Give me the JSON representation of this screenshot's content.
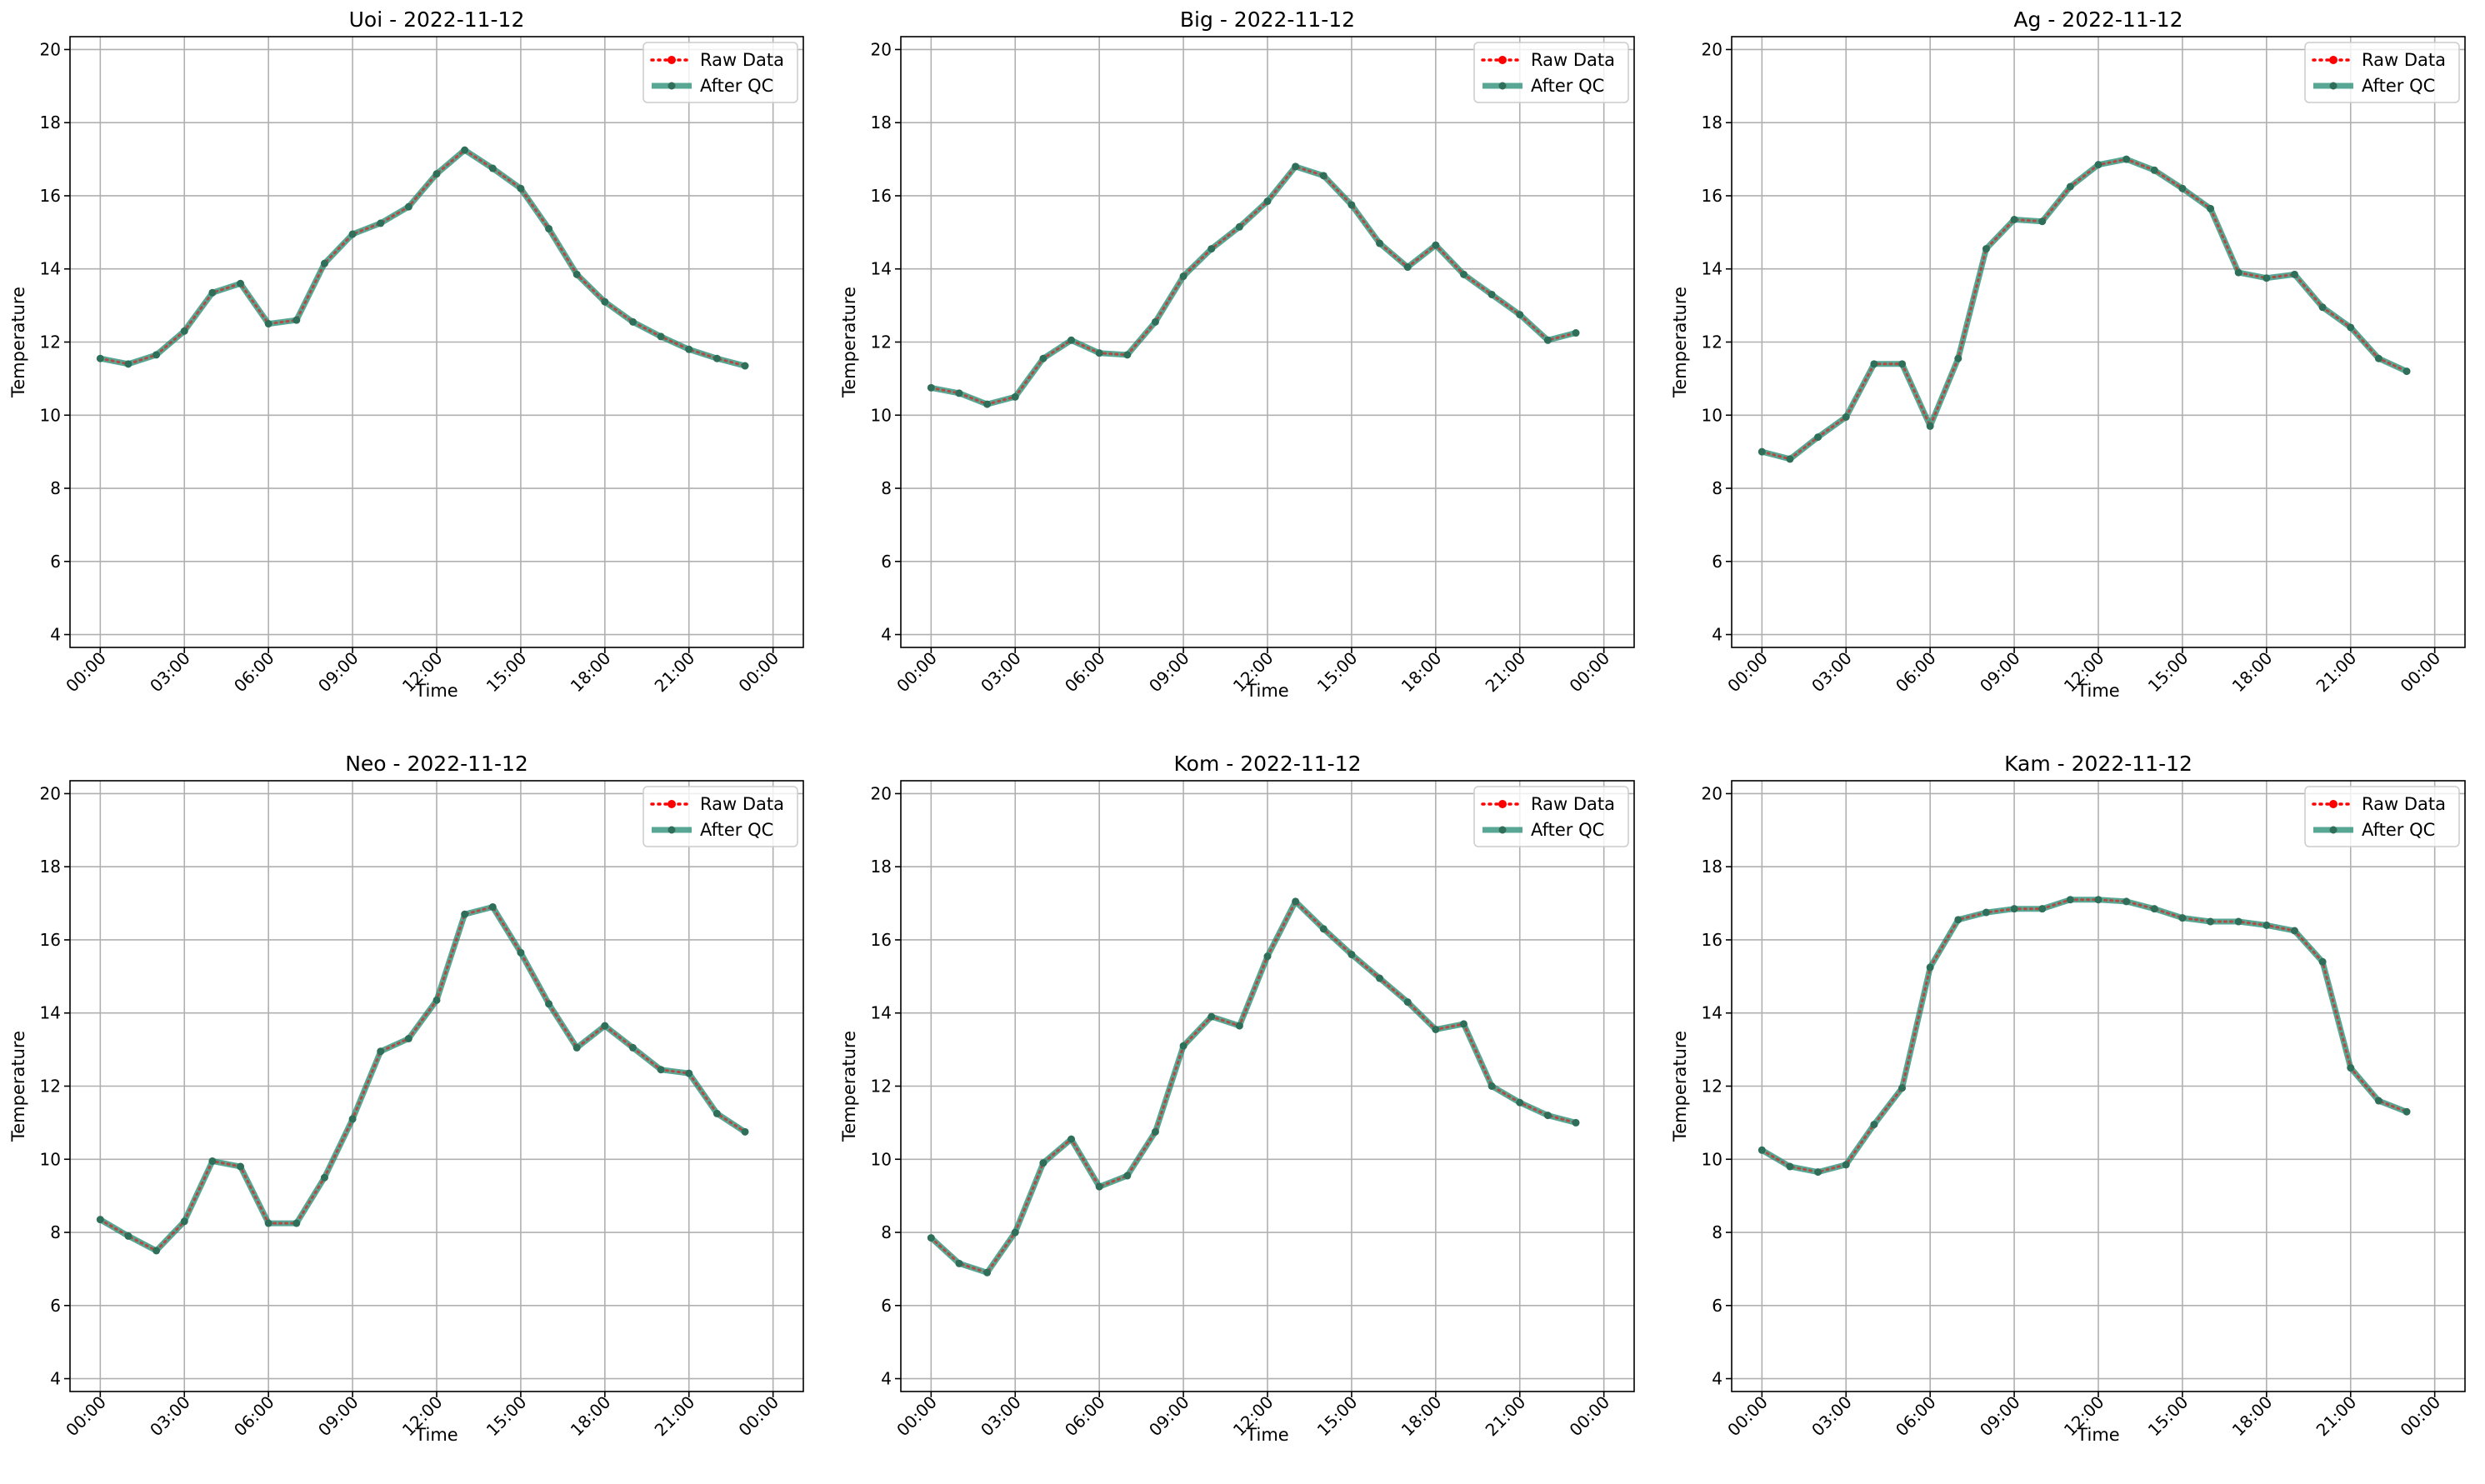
{
  "chart_data": [
    {
      "type": "line",
      "title": "Uoi - 2022-11-12",
      "xlabel": "Time",
      "ylabel": "Temperature",
      "ylim": [
        4,
        20
      ],
      "yticks": [
        "4",
        "6",
        "8",
        "10",
        "12",
        "14",
        "16",
        "18",
        "20"
      ],
      "xlim_hours": [
        0,
        24
      ],
      "xticks": [
        "00:00",
        "03:00",
        "06:00",
        "09:00",
        "12:00",
        "15:00",
        "18:00",
        "21:00",
        "00:00"
      ],
      "grid": true,
      "legend_placement": "top-right",
      "x_hours": [
        0,
        1,
        2,
        3,
        4,
        5,
        6,
        7,
        8,
        9,
        10,
        11,
        12,
        13,
        14,
        15,
        16,
        17,
        18,
        19,
        20,
        21,
        22,
        23
      ],
      "series": [
        {
          "name": "Raw Data",
          "color": "#ff0000",
          "values": [
            11.55,
            11.4,
            11.65,
            12.3,
            13.35,
            13.6,
            12.5,
            12.6,
            14.15,
            14.95,
            15.25,
            15.7,
            16.6,
            17.25,
            16.75,
            16.2,
            15.1,
            13.85,
            13.1,
            12.55,
            12.15,
            11.8,
            11.55,
            11.35
          ]
        },
        {
          "name": "After QC",
          "color": "#1f8a70",
          "values": [
            11.55,
            11.4,
            11.65,
            12.3,
            13.35,
            13.6,
            12.5,
            12.6,
            14.15,
            14.95,
            15.25,
            15.7,
            16.6,
            17.25,
            16.75,
            16.2,
            15.1,
            13.85,
            13.1,
            12.55,
            12.15,
            11.8,
            11.55,
            11.35
          ]
        }
      ]
    },
    {
      "type": "line",
      "title": "Big - 2022-11-12",
      "xlabel": "Time",
      "ylabel": "Temperature",
      "ylim": [
        4,
        20
      ],
      "yticks": [
        "4",
        "6",
        "8",
        "10",
        "12",
        "14",
        "16",
        "18",
        "20"
      ],
      "xlim_hours": [
        0,
        24
      ],
      "xticks": [
        "00:00",
        "03:00",
        "06:00",
        "09:00",
        "12:00",
        "15:00",
        "18:00",
        "21:00",
        "00:00"
      ],
      "grid": true,
      "legend_placement": "top-right",
      "x_hours": [
        0,
        1,
        2,
        3,
        4,
        5,
        6,
        7,
        8,
        9,
        10,
        11,
        12,
        13,
        14,
        15,
        16,
        17,
        18,
        19,
        20,
        21,
        22,
        23
      ],
      "series": [
        {
          "name": "Raw Data",
          "color": "#ff0000",
          "values": [
            10.75,
            10.6,
            10.3,
            10.5,
            11.55,
            12.05,
            11.7,
            11.65,
            12.55,
            13.8,
            14.55,
            15.15,
            15.85,
            16.8,
            16.55,
            15.75,
            14.7,
            14.05,
            14.65,
            13.85,
            13.3,
            12.75,
            12.05,
            12.25
          ]
        },
        {
          "name": "After QC",
          "color": "#1f8a70",
          "values": [
            10.75,
            10.6,
            10.3,
            10.5,
            11.55,
            12.05,
            11.7,
            11.65,
            12.55,
            13.8,
            14.55,
            15.15,
            15.85,
            16.8,
            16.55,
            15.75,
            14.7,
            14.05,
            14.65,
            13.85,
            13.3,
            12.75,
            12.05,
            12.25
          ]
        }
      ]
    },
    {
      "type": "line",
      "title": "Ag - 2022-11-12",
      "xlabel": "Time",
      "ylabel": "Temperature",
      "ylim": [
        4,
        20
      ],
      "yticks": [
        "4",
        "6",
        "8",
        "10",
        "12",
        "14",
        "16",
        "18",
        "20"
      ],
      "xlim_hours": [
        0,
        24
      ],
      "xticks": [
        "00:00",
        "03:00",
        "06:00",
        "09:00",
        "12:00",
        "15:00",
        "18:00",
        "21:00",
        "00:00"
      ],
      "grid": true,
      "legend_placement": "top-right",
      "x_hours": [
        0,
        1,
        2,
        3,
        4,
        5,
        6,
        7,
        8,
        9,
        10,
        11,
        12,
        13,
        14,
        15,
        16,
        17,
        18,
        19,
        20,
        21,
        22,
        23
      ],
      "series": [
        {
          "name": "Raw Data",
          "color": "#ff0000",
          "values": [
            9.0,
            8.8,
            9.4,
            9.95,
            11.4,
            11.4,
            9.7,
            11.55,
            14.55,
            15.35,
            15.3,
            16.25,
            16.85,
            17.0,
            16.7,
            16.2,
            15.65,
            13.9,
            13.75,
            13.85,
            12.95,
            12.4,
            11.55,
            11.2
          ]
        },
        {
          "name": "After QC",
          "color": "#1f8a70",
          "values": [
            9.0,
            8.8,
            9.4,
            9.95,
            11.4,
            11.4,
            9.7,
            11.55,
            14.55,
            15.35,
            15.3,
            16.25,
            16.85,
            17.0,
            16.7,
            16.2,
            15.65,
            13.9,
            13.75,
            13.85,
            12.95,
            12.4,
            11.55,
            11.2
          ]
        }
      ]
    },
    {
      "type": "line",
      "title": "Neo - 2022-11-12",
      "xlabel": "Time",
      "ylabel": "Temperature",
      "ylim": [
        4,
        20
      ],
      "yticks": [
        "4",
        "6",
        "8",
        "10",
        "12",
        "14",
        "16",
        "18",
        "20"
      ],
      "xlim_hours": [
        0,
        24
      ],
      "xticks": [
        "00:00",
        "03:00",
        "06:00",
        "09:00",
        "12:00",
        "15:00",
        "18:00",
        "21:00",
        "00:00"
      ],
      "grid": true,
      "legend_placement": "top-right",
      "x_hours": [
        0,
        1,
        2,
        3,
        4,
        5,
        6,
        7,
        8,
        9,
        10,
        11,
        12,
        13,
        14,
        15,
        16,
        17,
        18,
        19,
        20,
        21,
        22,
        23
      ],
      "series": [
        {
          "name": "Raw Data",
          "color": "#ff0000",
          "values": [
            8.35,
            7.9,
            7.5,
            8.3,
            9.95,
            9.8,
            8.25,
            8.25,
            9.5,
            11.1,
            12.95,
            13.3,
            14.35,
            16.7,
            16.9,
            15.65,
            14.25,
            13.05,
            13.65,
            13.05,
            12.45,
            12.35,
            11.25,
            10.75
          ]
        },
        {
          "name": "After QC",
          "color": "#1f8a70",
          "values": [
            8.35,
            7.9,
            7.5,
            8.3,
            9.95,
            9.8,
            8.25,
            8.25,
            9.5,
            11.1,
            12.95,
            13.3,
            14.35,
            16.7,
            16.9,
            15.65,
            14.25,
            13.05,
            13.65,
            13.05,
            12.45,
            12.35,
            11.25,
            10.75
          ]
        }
      ]
    },
    {
      "type": "line",
      "title": "Kom - 2022-11-12",
      "xlabel": "Time",
      "ylabel": "Temperature",
      "ylim": [
        4,
        20
      ],
      "yticks": [
        "4",
        "6",
        "8",
        "10",
        "12",
        "14",
        "16",
        "18",
        "20"
      ],
      "xlim_hours": [
        0,
        24
      ],
      "xticks": [
        "00:00",
        "03:00",
        "06:00",
        "09:00",
        "12:00",
        "15:00",
        "18:00",
        "21:00",
        "00:00"
      ],
      "grid": true,
      "legend_placement": "top-right",
      "x_hours": [
        0,
        1,
        2,
        3,
        4,
        5,
        6,
        7,
        8,
        9,
        10,
        11,
        12,
        13,
        14,
        15,
        16,
        17,
        18,
        19,
        20,
        21,
        22,
        23
      ],
      "series": [
        {
          "name": "Raw Data",
          "color": "#ff0000",
          "values": [
            7.85,
            7.15,
            6.9,
            8.0,
            9.9,
            10.55,
            9.25,
            9.55,
            10.75,
            13.1,
            13.9,
            13.65,
            15.55,
            17.05,
            16.3,
            15.6,
            14.95,
            14.3,
            13.55,
            13.7,
            12.0,
            11.55,
            11.2,
            11.0
          ]
        },
        {
          "name": "After QC",
          "color": "#1f8a70",
          "values": [
            7.85,
            7.15,
            6.9,
            8.0,
            9.9,
            10.55,
            9.25,
            9.55,
            10.75,
            13.1,
            13.9,
            13.65,
            15.55,
            17.05,
            16.3,
            15.6,
            14.95,
            14.3,
            13.55,
            13.7,
            12.0,
            11.55,
            11.2,
            11.0
          ]
        }
      ]
    },
    {
      "type": "line",
      "title": "Kam - 2022-11-12",
      "xlabel": "Time",
      "ylabel": "Temperature",
      "ylim": [
        4,
        20
      ],
      "yticks": [
        "4",
        "6",
        "8",
        "10",
        "12",
        "14",
        "16",
        "18",
        "20"
      ],
      "xlim_hours": [
        0,
        24
      ],
      "xticks": [
        "00:00",
        "03:00",
        "06:00",
        "09:00",
        "12:00",
        "15:00",
        "18:00",
        "21:00",
        "00:00"
      ],
      "grid": true,
      "legend_placement": "top-right",
      "x_hours": [
        0,
        1,
        2,
        3,
        4,
        5,
        6,
        7,
        8,
        9,
        10,
        11,
        12,
        13,
        14,
        15,
        16,
        17,
        18,
        19,
        20,
        21,
        22,
        23
      ],
      "series": [
        {
          "name": "Raw Data",
          "color": "#ff0000",
          "values": [
            10.25,
            9.8,
            9.65,
            9.85,
            10.95,
            11.95,
            15.25,
            16.55,
            16.75,
            16.85,
            16.85,
            17.1,
            17.1,
            17.05,
            16.85,
            16.6,
            16.5,
            16.5,
            16.4,
            16.25,
            15.4,
            12.5,
            11.6,
            11.3
          ]
        },
        {
          "name": "After QC",
          "color": "#1f8a70",
          "values": [
            10.25,
            9.8,
            9.65,
            9.85,
            10.95,
            11.95,
            15.25,
            16.55,
            16.75,
            16.85,
            16.85,
            17.1,
            17.1,
            17.05,
            16.85,
            16.6,
            16.5,
            16.5,
            16.4,
            16.25,
            15.4,
            12.5,
            11.6,
            11.3
          ]
        }
      ]
    }
  ]
}
